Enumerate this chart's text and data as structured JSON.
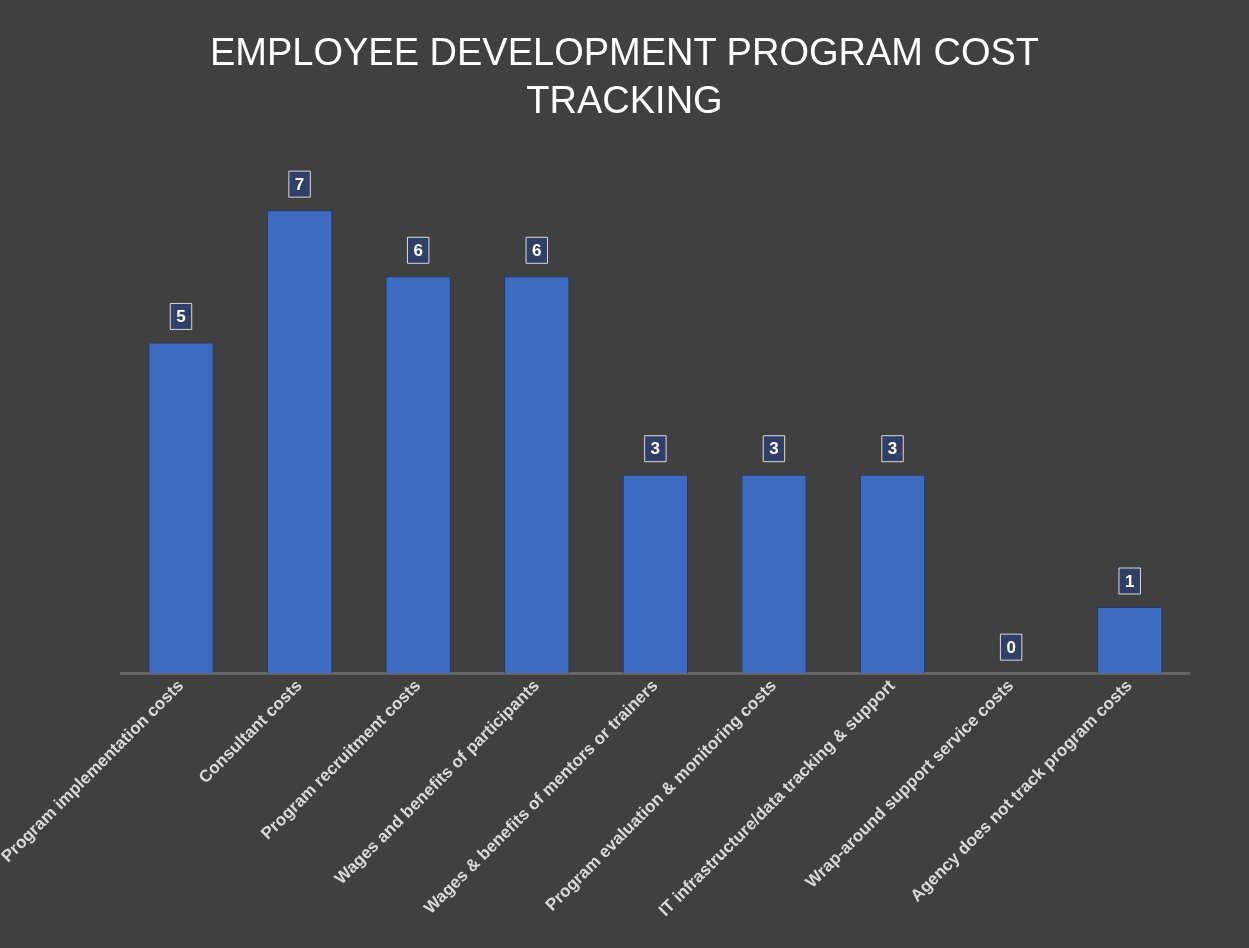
{
  "chart_data": {
    "type": "bar",
    "title": "EMPLOYEE DEVELOPMENT PROGRAM COST TRACKING",
    "categories": [
      "Program implementation costs",
      "Consultant costs",
      "Program recruitment costs",
      "Wages and benefits of participants",
      "Wages & benefits of mentors or trainers",
      "Program evaluation & monitoring costs",
      "IT infrastructure/data tracking & support",
      "Wrap-around support service costs",
      "Agency does not track program costs"
    ],
    "values": [
      5,
      7,
      6,
      6,
      3,
      3,
      3,
      0,
      1
    ],
    "color": "#3e6bc0",
    "data_labels": true,
    "grid": false,
    "legend": false
  }
}
